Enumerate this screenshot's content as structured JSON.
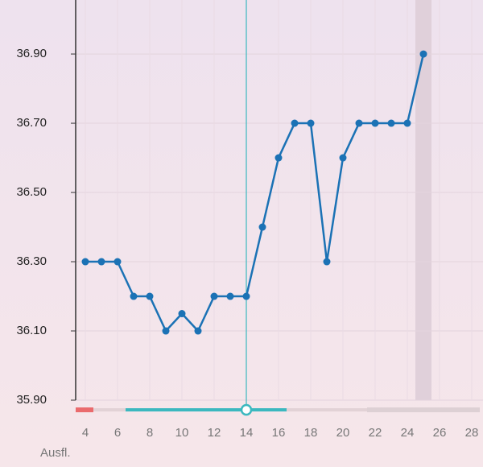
{
  "chart_data": {
    "type": "line",
    "x": [
      4,
      5,
      6,
      7,
      8,
      9,
      10,
      11,
      12,
      13,
      14,
      15,
      16,
      17,
      18,
      19,
      20,
      21,
      22,
      23,
      24,
      25
    ],
    "series": [
      {
        "color": "#1b72b5",
        "values": [
          36.3,
          36.3,
          36.3,
          36.2,
          36.2,
          36.1,
          36.15,
          36.1,
          36.2,
          36.2,
          36.2,
          36.4,
          36.6,
          36.7,
          36.7,
          36.3,
          36.6,
          36.7,
          36.7,
          36.7,
          36.7,
          36.9
        ]
      }
    ],
    "xlim": [
      3.4,
      28.7
    ],
    "ylim": [
      35.9,
      37.056
    ],
    "xticks": [
      4,
      6,
      8,
      10,
      12,
      14,
      16,
      18,
      20,
      22,
      24,
      26,
      28
    ],
    "yticks": [
      {
        "value": 35.9,
        "label": "35.90"
      },
      {
        "value": 36.1,
        "label": "36.10"
      },
      {
        "value": 36.3,
        "label": "36.30"
      },
      {
        "value": 36.5,
        "label": "36.50"
      },
      {
        "value": 36.7,
        "label": "36.70"
      },
      {
        "value": 36.9,
        "label": "36.90"
      }
    ],
    "grid": true,
    "cursor": 14,
    "highlight": 25,
    "footer": "Ausfl."
  }
}
